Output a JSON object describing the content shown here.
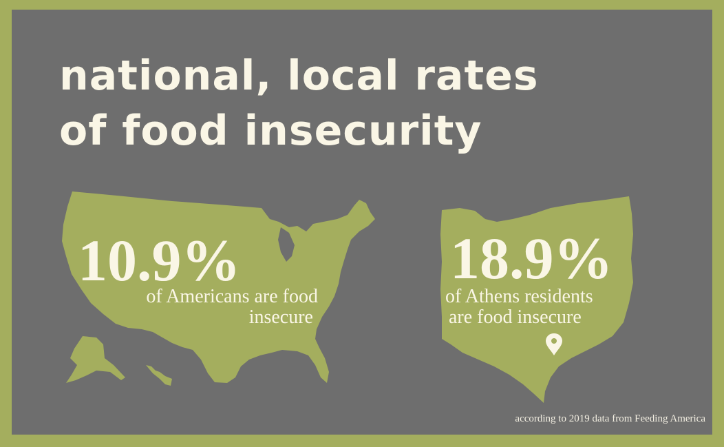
{
  "title": {
    "line1": "national, local rates",
    "line2": "of food insecurity"
  },
  "national": {
    "stat": "10.9%",
    "line1": "of Americans are food",
    "line2": "insecure"
  },
  "local": {
    "stat": "18.9%",
    "line1": "of Athens residents",
    "line2": "are food insecure",
    "marker_icon": "map-pin-icon"
  },
  "source": "according to 2019 data from Feeding America",
  "colors": {
    "border": "#a4ae5e",
    "background": "#6e6e6e",
    "map_fill": "#a4ae5e",
    "text": "#faf6e6"
  }
}
